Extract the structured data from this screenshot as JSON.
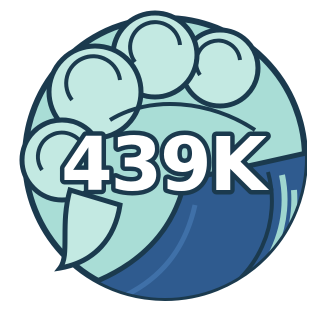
{
  "badge": {
    "label": "439K"
  }
}
